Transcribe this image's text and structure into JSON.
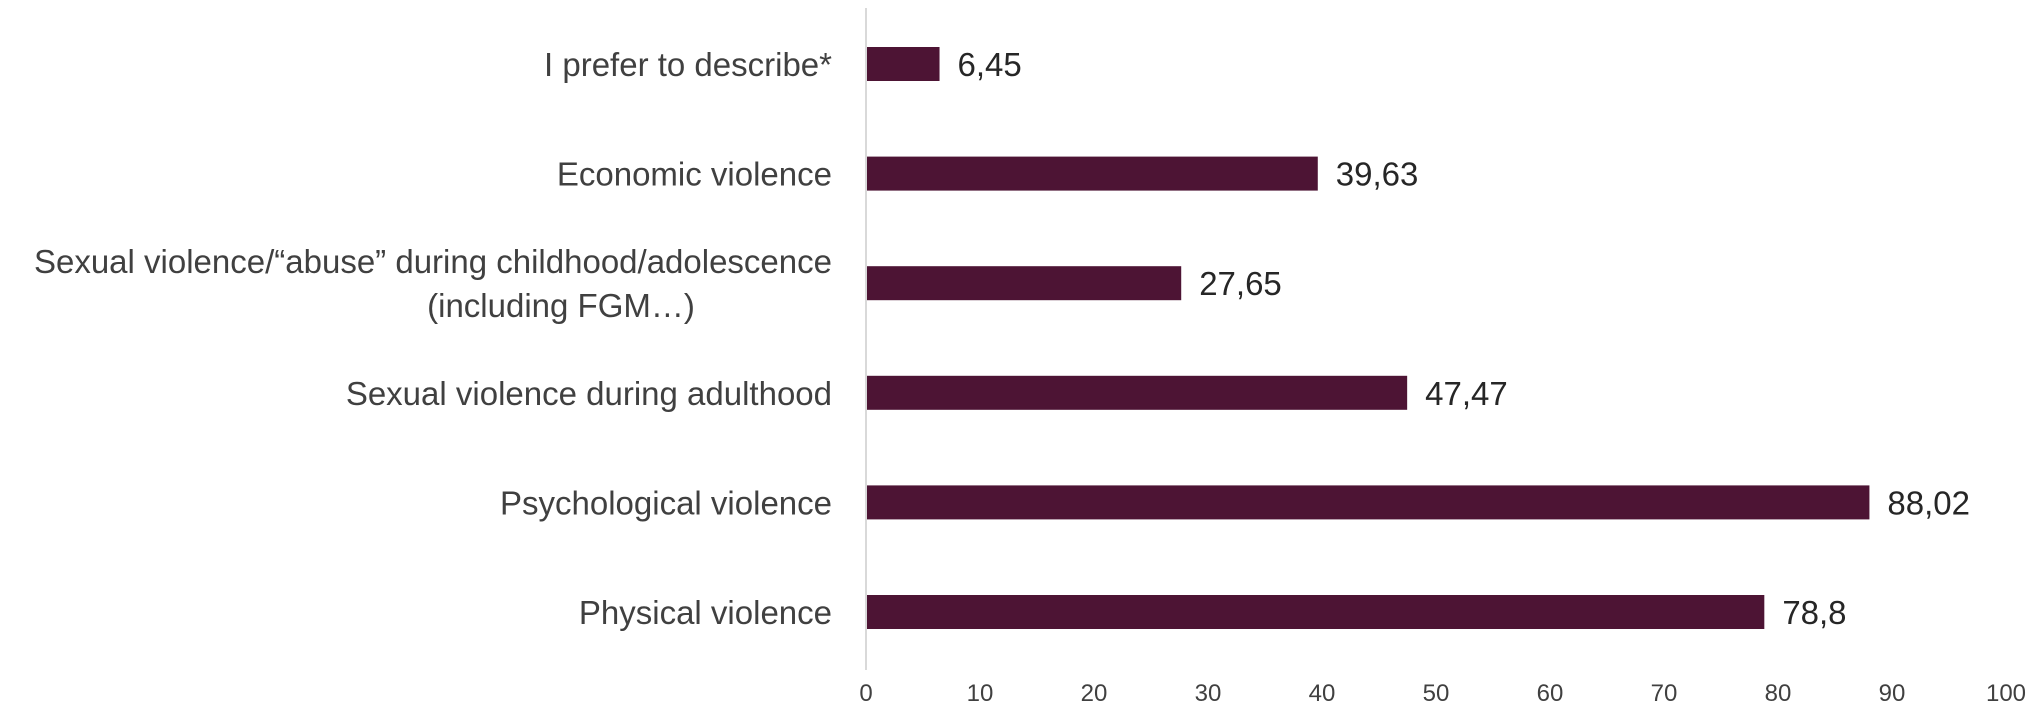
{
  "chart_data": {
    "type": "bar",
    "orientation": "horizontal",
    "categories": [
      [
        "I prefer to describe*"
      ],
      [
        "Economic violence"
      ],
      [
        "Sexual violence/“abuse” during childhood/adolescence",
        "(including FGM…)"
      ],
      [
        "Sexual violence during adulthood"
      ],
      [
        "Psychological violence"
      ],
      [
        "Physical violence"
      ]
    ],
    "values": [
      6.45,
      39.63,
      27.65,
      47.47,
      88.02,
      78.8
    ],
    "value_labels": [
      "6,45",
      "39,63",
      "27,65",
      "47,47",
      "88,02",
      "78,8"
    ],
    "xlim": [
      0,
      100
    ],
    "xticks": [
      0,
      10,
      20,
      30,
      40,
      50,
      60,
      70,
      80,
      90,
      100
    ],
    "xtick_labels": [
      "0",
      "10",
      "20",
      "30",
      "40",
      "50",
      "60",
      "70",
      "80",
      "90",
      "100"
    ],
    "grid": false,
    "legend": "none",
    "bar_color": "#4d1434",
    "axis_color": "#d9d9d9"
  }
}
